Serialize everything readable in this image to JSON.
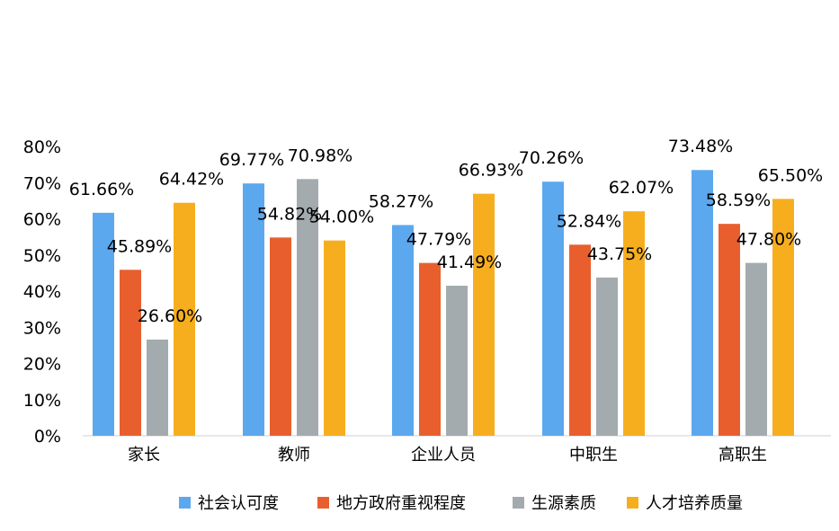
{
  "chart_data": {
    "type": "bar",
    "title": "",
    "xlabel": "",
    "ylabel": "",
    "categories": [
      "家长",
      "教师",
      "企业人员",
      "中职生",
      "高职生"
    ],
    "ylim": [
      0,
      80
    ],
    "yticks": [
      0,
      10,
      20,
      30,
      40,
      50,
      60,
      70,
      80
    ],
    "ytick_labels": [
      "0%",
      "10%",
      "20%",
      "30%",
      "40%",
      "50%",
      "60%",
      "70%",
      "80%"
    ],
    "grid": false,
    "legend": "bottom",
    "series": [
      {
        "name": "社会认可度",
        "color": "#5BA8EE",
        "values": [
          61.66,
          69.77,
          58.27,
          70.26,
          73.48
        ],
        "labels": [
          "61.66%",
          "69.77%",
          "58.27%",
          "70.26%",
          "73.48%"
        ]
      },
      {
        "name": "地方政府重视程度",
        "color": "#E85F2D",
        "values": [
          45.89,
          54.82,
          47.79,
          52.84,
          58.59
        ],
        "labels": [
          "45.89%",
          "54.82%",
          "47.79%",
          "52.84%",
          "58.59%"
        ]
      },
      {
        "name": "生源素质",
        "color": "#A3ABAE",
        "values": [
          26.6,
          70.98,
          41.49,
          43.75,
          47.8
        ],
        "labels": [
          "26.60%",
          "70.98%",
          "41.49%",
          "43.75%",
          "47.80%"
        ]
      },
      {
        "name": "人才培养质量",
        "color": "#F7AE1E",
        "values": [
          64.42,
          54.0,
          66.93,
          62.07,
          65.5
        ],
        "labels": [
          "64.42%",
          "54.00%",
          "66.93%",
          "62.07%",
          "65.50%"
        ]
      }
    ]
  }
}
